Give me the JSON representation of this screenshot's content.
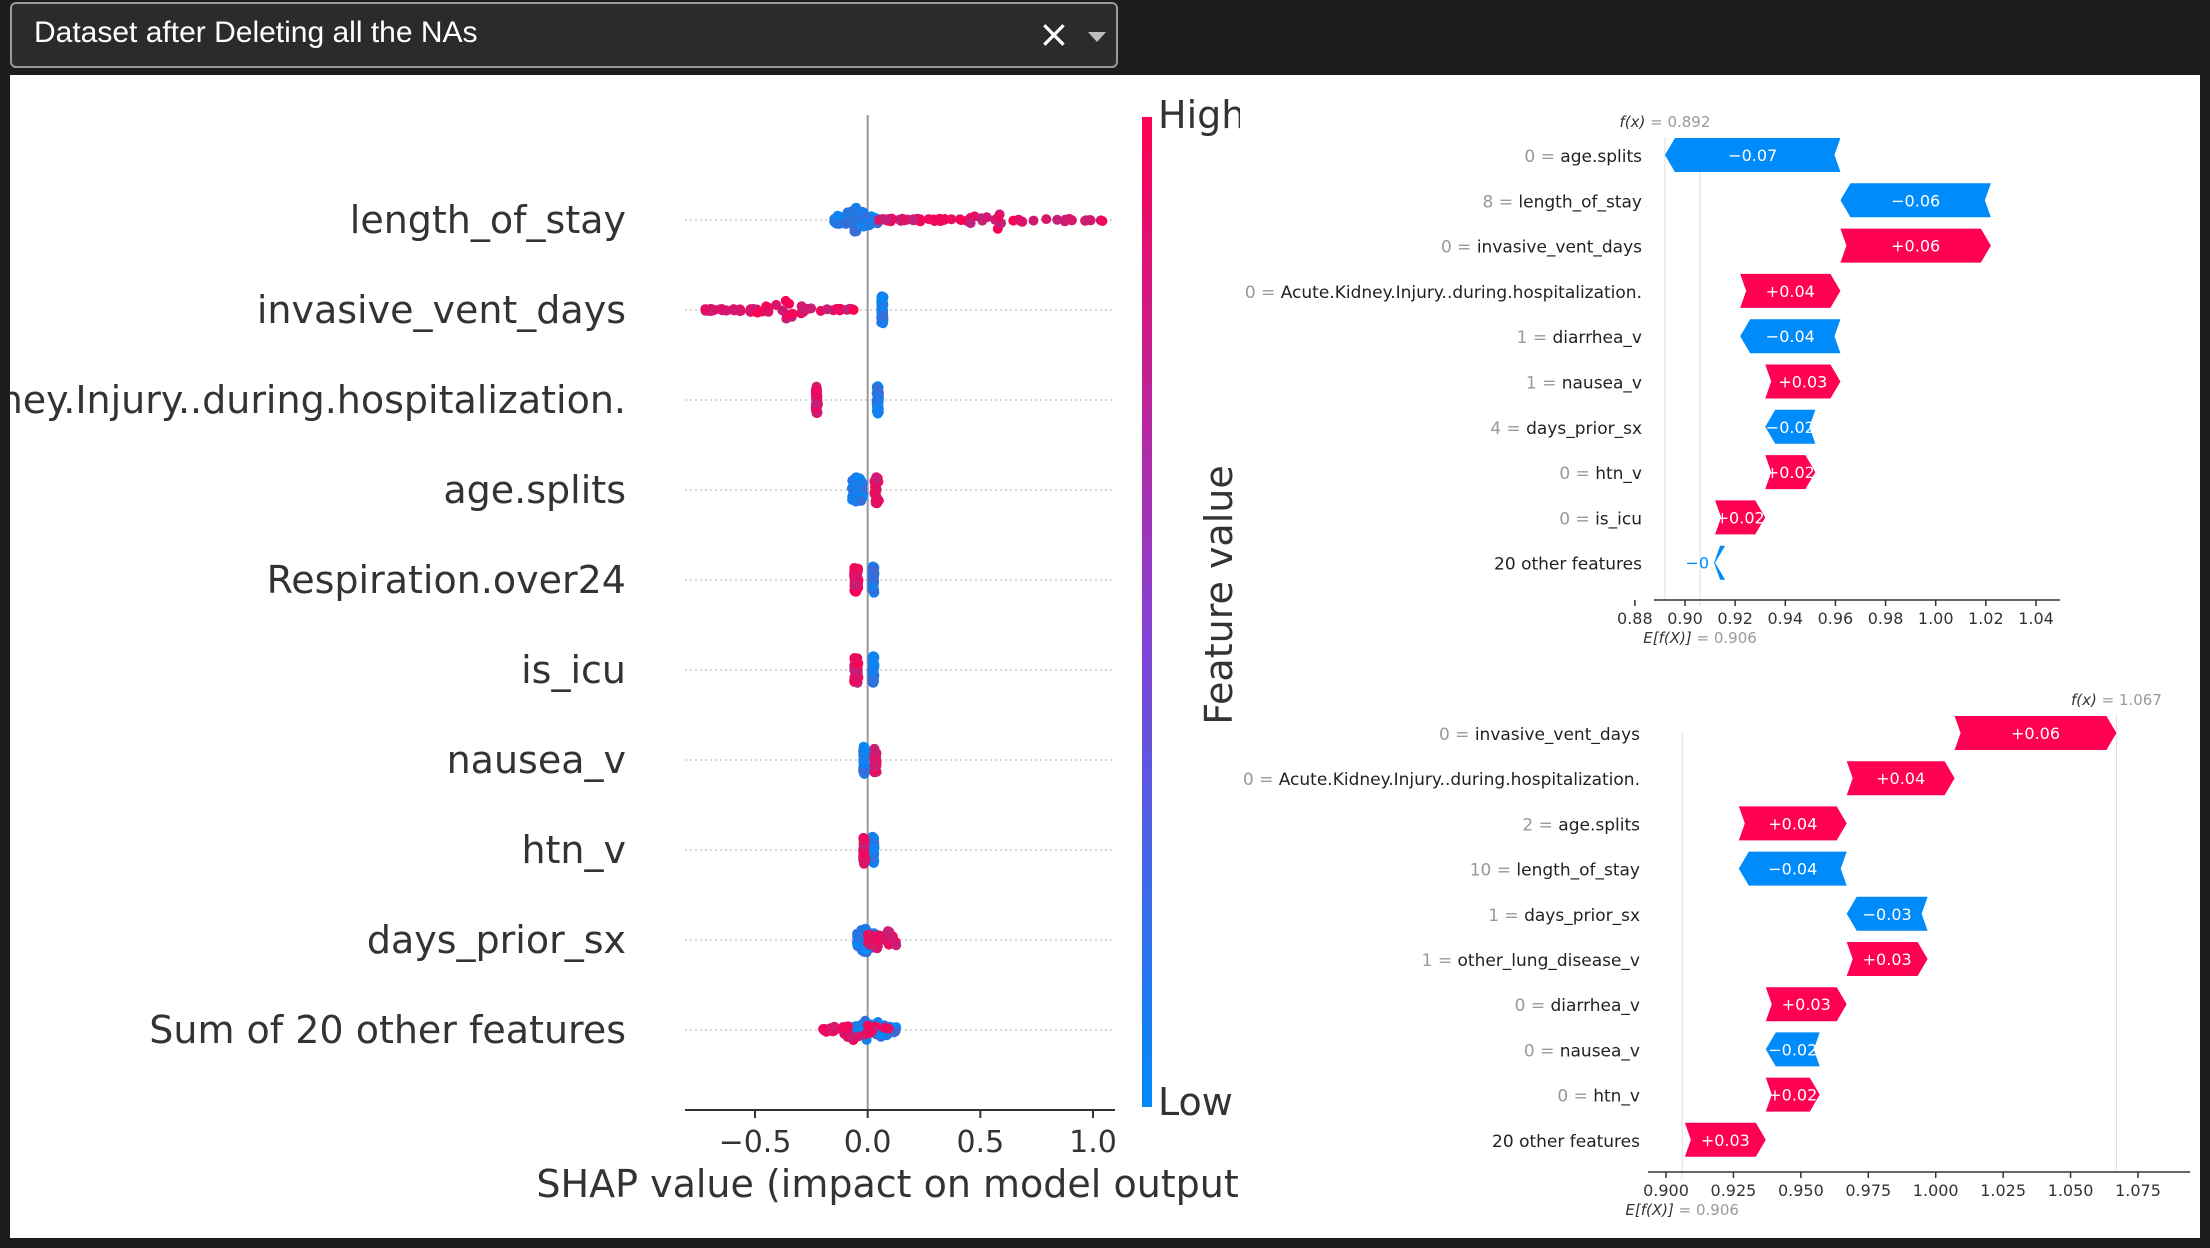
{
  "selector": {
    "value": "Dataset after Deleting all the NAs",
    "clear_icon": "×",
    "caret_icon": "chevron-down-icon"
  },
  "colors": {
    "high": "#ff0052",
    "low": "#008bfb",
    "grid": "#cccccc"
  },
  "chart_data": [
    {
      "type": "scatter",
      "subtype": "shap-beeswarm",
      "features": [
        "length_of_stay",
        "invasive_vent_days",
        "Acute.Kidney.Injury..during.hospitalization.",
        "age.splits",
        "Respiration.over24",
        "is_icu",
        "nausea_v",
        "htn_v",
        "days_prior_sx",
        "Sum of 20 other features"
      ],
      "xlabel": "SHAP value (impact on model output)",
      "xticks": [
        -0.5,
        0.0,
        0.5,
        1.0
      ],
      "xtick_labels": [
        "−0.5",
        "0.0",
        "0.5",
        "1.0"
      ],
      "xlim": [
        -0.8,
        1.15
      ],
      "colorbar": {
        "label": "Feature value",
        "high": "High",
        "low": "Low"
      },
      "series": [
        {
          "name": "length_of_stay",
          "low_range": [
            -0.15,
            0.05
          ],
          "high_range": [
            0.05,
            1.05
          ]
        },
        {
          "name": "invasive_vent_days",
          "low_range": [
            0.06,
            0.07
          ],
          "high_range": [
            -0.72,
            -0.05
          ]
        },
        {
          "name": "Acute.Kidney.Injury..during.hospitalization.",
          "low_range": [
            0.04,
            0.05
          ],
          "high_range": [
            -0.23,
            -0.22
          ]
        },
        {
          "name": "age.splits",
          "low_range": [
            -0.07,
            -0.02
          ],
          "high_range": [
            0.03,
            0.05
          ]
        },
        {
          "name": "Respiration.over24",
          "low_range": [
            0.02,
            0.03
          ],
          "high_range": [
            -0.06,
            -0.04
          ]
        },
        {
          "name": "is_icu",
          "low_range": [
            0.02,
            0.03
          ],
          "high_range": [
            -0.06,
            -0.04
          ]
        },
        {
          "name": "nausea_v",
          "low_range": [
            -0.02,
            -0.01
          ],
          "high_range": [
            0.03,
            0.04
          ]
        },
        {
          "name": "htn_v",
          "low_range": [
            0.02,
            0.03
          ],
          "high_range": [
            -0.02,
            -0.01
          ]
        },
        {
          "name": "days_prior_sx",
          "low_range": [
            -0.05,
            0.03
          ],
          "high_range": [
            0.0,
            0.13
          ]
        },
        {
          "name": "Sum of 20 other features",
          "low_range": [
            -0.1,
            0.13
          ],
          "high_range": [
            -0.2,
            0.1
          ]
        }
      ]
    },
    {
      "type": "bar",
      "subtype": "shap-waterfall",
      "fx_label": "f(x)",
      "fx": "0.892",
      "efx_label": "E[f(X)]",
      "efx": "0.906",
      "base": 0.906,
      "final": 0.892,
      "xlim": [
        0.87,
        1.045
      ],
      "xticks": [
        0.88,
        0.9,
        0.92,
        0.94,
        0.96,
        0.98,
        1.0,
        1.02,
        1.04
      ],
      "xtick_labels": [
        "0.88",
        "0.90",
        "0.92",
        "0.94",
        "0.96",
        "0.98",
        "1.00",
        "1.02",
        "1.04"
      ],
      "rows": [
        {
          "value_text": "0",
          "feature": "age.splits",
          "shap": -0.07,
          "label": "−0.07"
        },
        {
          "value_text": "8",
          "feature": "length_of_stay",
          "shap": -0.06,
          "label": "−0.06"
        },
        {
          "value_text": "0",
          "feature": "invasive_vent_days",
          "shap": 0.06,
          "label": "+0.06"
        },
        {
          "value_text": "0",
          "feature": "Acute.Kidney.Injury..during.hospitalization.",
          "shap": 0.04,
          "label": "+0.04"
        },
        {
          "value_text": "1",
          "feature": "diarrhea_v",
          "shap": -0.04,
          "label": "−0.04"
        },
        {
          "value_text": "1",
          "feature": "nausea_v",
          "shap": 0.03,
          "label": "+0.03"
        },
        {
          "value_text": "4",
          "feature": "days_prior_sx",
          "shap": -0.02,
          "label": "−0.02"
        },
        {
          "value_text": "0",
          "feature": "htn_v",
          "shap": 0.02,
          "label": "+0.02"
        },
        {
          "value_text": "0",
          "feature": "is_icu",
          "shap": 0.02,
          "label": "+0.02"
        },
        {
          "value_text": "",
          "feature": "20 other features",
          "shap": -0.002,
          "label": "−0"
        }
      ]
    },
    {
      "type": "bar",
      "subtype": "shap-waterfall",
      "fx_label": "f(x)",
      "fx": "1.067",
      "efx_label": "E[f(X)]",
      "efx": "0.906",
      "base": 0.906,
      "final": 1.067,
      "xlim": [
        0.895,
        1.09
      ],
      "xticks": [
        0.9,
        0.925,
        0.95,
        0.975,
        1.0,
        1.025,
        1.05,
        1.075
      ],
      "xtick_labels": [
        "0.900",
        "0.925",
        "0.950",
        "0.975",
        "1.000",
        "1.025",
        "1.050",
        "1.075"
      ],
      "rows": [
        {
          "value_text": "0",
          "feature": "invasive_vent_days",
          "shap": 0.06,
          "label": "+0.06"
        },
        {
          "value_text": "0",
          "feature": "Acute.Kidney.Injury..during.hospitalization.",
          "shap": 0.04,
          "label": "+0.04"
        },
        {
          "value_text": "2",
          "feature": "age.splits",
          "shap": 0.04,
          "label": "+0.04"
        },
        {
          "value_text": "10",
          "feature": "length_of_stay",
          "shap": -0.04,
          "label": "−0.04"
        },
        {
          "value_text": "1",
          "feature": "days_prior_sx",
          "shap": -0.03,
          "label": "−0.03"
        },
        {
          "value_text": "1",
          "feature": "other_lung_disease_v",
          "shap": 0.03,
          "label": "+0.03"
        },
        {
          "value_text": "0",
          "feature": "diarrhea_v",
          "shap": 0.03,
          "label": "+0.03"
        },
        {
          "value_text": "0",
          "feature": "nausea_v",
          "shap": -0.02,
          "label": "−0.02"
        },
        {
          "value_text": "0",
          "feature": "htn_v",
          "shap": 0.02,
          "label": "+0.02"
        },
        {
          "value_text": "",
          "feature": "20 other features",
          "shap": 0.03,
          "label": "+0.03"
        }
      ]
    }
  ]
}
